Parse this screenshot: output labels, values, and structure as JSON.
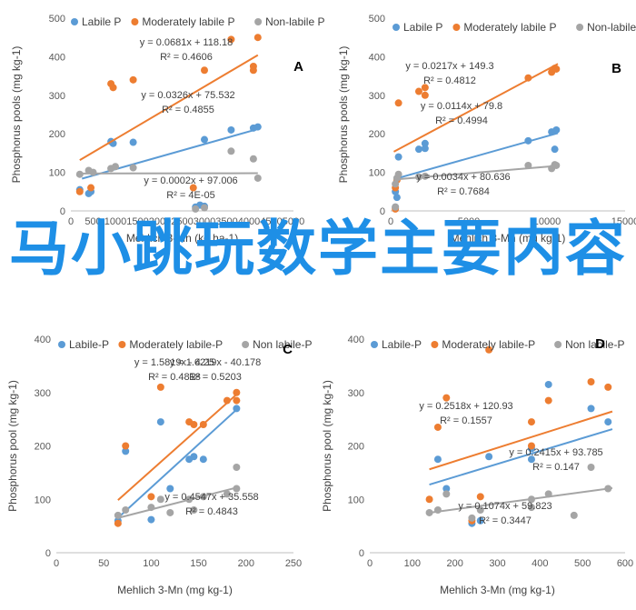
{
  "colors": {
    "labile": "#5b9bd5",
    "moderate": "#ed7d31",
    "nonlabile": "#a5a5a5"
  },
  "watermark": "马小跳玩数学主要内容",
  "chart_data": [
    {
      "type": "scatter",
      "label": "A",
      "xlabel": "Mehlich 3-Mn (kg ha-1)",
      "ylabel": "Phosphorus pools (mg kg-1)",
      "xlim": [
        0,
        5000
      ],
      "ylim": [
        0,
        500
      ],
      "xticks": [
        0,
        500,
        1000,
        1500,
        2000,
        2500,
        3000,
        3500,
        4000,
        4500,
        5000
      ],
      "yticks": [
        0,
        100,
        200,
        300,
        400,
        500
      ],
      "legend": [
        "Labile P",
        "Moderately labile P",
        "Non-labile P"
      ],
      "series": [
        {
          "name": "Labile P",
          "points": [
            [
              200,
              55
            ],
            [
              400,
              45
            ],
            [
              450,
              50
            ],
            [
              900,
              180
            ],
            [
              950,
              175
            ],
            [
              1400,
              178
            ],
            [
              3000,
              185
            ],
            [
              3600,
              210
            ],
            [
              4100,
              215
            ],
            [
              4200,
              218
            ],
            [
              2800,
              10
            ],
            [
              2900,
              15
            ],
            [
              3000,
              12
            ]
          ],
          "trend": [
            250,
            4200
          ],
          "eq": "y = 0.0326x + 75.532",
          "r2": "R² = 0.4855"
        },
        {
          "name": "Moderately labile P",
          "points": [
            [
              200,
              50
            ],
            [
              450,
              60
            ],
            [
              900,
              330
            ],
            [
              950,
              320
            ],
            [
              1400,
              340
            ],
            [
              3000,
              365
            ],
            [
              3600,
              445
            ],
            [
              4100,
              375
            ],
            [
              4200,
              450
            ],
            [
              4100,
              365
            ],
            [
              2750,
              60
            ]
          ],
          "trend": [
            200,
            4200
          ],
          "eq": "y = 0.0681x + 118.18",
          "r2": "R² = 0.4606"
        },
        {
          "name": "Non-labile P",
          "points": [
            [
              200,
              95
            ],
            [
              400,
              105
            ],
            [
              500,
              100
            ],
            [
              900,
              110
            ],
            [
              1000,
              115
            ],
            [
              1400,
              112
            ],
            [
              2800,
              5
            ],
            [
              3000,
              8
            ],
            [
              3600,
              155
            ],
            [
              4100,
              135
            ],
            [
              4200,
              85
            ]
          ],
          "trend": [
            200,
            4200
          ],
          "eq": "y = 0.0002x + 97.006",
          "r2": "R² = 4E-05"
        }
      ]
    },
    {
      "type": "scatter",
      "label": "B",
      "xlabel": "Mehlich 3-Mn (mg kg-1)",
      "ylabel": "Phosphorus pools (mg kg-1)",
      "xlim": [
        0,
        15000
      ],
      "ylim": [
        0,
        500
      ],
      "xticks": [
        0,
        5000,
        10000,
        15000
      ],
      "yticks": [
        0,
        100,
        200,
        300,
        400,
        500
      ],
      "legend": [
        "Labile P",
        "Moderately labile P",
        "Non-labile P"
      ],
      "series": [
        {
          "name": "Labile P",
          "points": [
            [
              300,
              10
            ],
            [
              400,
              35
            ],
            [
              500,
              140
            ],
            [
              1800,
              160
            ],
            [
              2200,
              162
            ],
            [
              2200,
              175
            ],
            [
              8800,
              182
            ],
            [
              10300,
              205
            ],
            [
              10500,
              160
            ],
            [
              10600,
              210
            ],
            [
              300,
              50
            ]
          ],
          "trend": [
            200,
            10700
          ],
          "eq": "y = 0.0114x + 79.8",
          "r2": "R² = 0.4994"
        },
        {
          "name": "Moderately labile P",
          "points": [
            [
              300,
              60
            ],
            [
              400,
              80
            ],
            [
              500,
              280
            ],
            [
              1800,
              310
            ],
            [
              2200,
              300
            ],
            [
              2200,
              320
            ],
            [
              8800,
              345
            ],
            [
              10300,
              360
            ],
            [
              10500,
              370
            ],
            [
              10600,
              368
            ],
            [
              300,
              5
            ]
          ],
          "trend": [
            200,
            10700
          ],
          "eq": "y = 0.0217x + 149.3",
          "r2": "R² = 0.4812"
        },
        {
          "name": "Non-labile P",
          "points": [
            [
              300,
              70
            ],
            [
              400,
              85
            ],
            [
              500,
              95
            ],
            [
              1800,
              88
            ],
            [
              2200,
              90
            ],
            [
              8800,
              118
            ],
            [
              10300,
              110
            ],
            [
              10500,
              120
            ],
            [
              10600,
              118
            ],
            [
              300,
              10
            ]
          ],
          "trend": [
            200,
            10700
          ],
          "eq": "y = 0.0034x + 80.636",
          "r2": "R² = 0.7684"
        }
      ]
    },
    {
      "type": "scatter",
      "label": "C",
      "xlabel": "Mehlich 3-Mn (mg kg-1)",
      "ylabel": "Phosphorus pool (mg kg-1)",
      "xlim": [
        0,
        250
      ],
      "ylim": [
        0,
        400
      ],
      "xticks": [
        0,
        50,
        100,
        150,
        200,
        250
      ],
      "yticks": [
        0,
        100,
        200,
        300,
        400
      ],
      "legend": [
        "Labile-P",
        "Moderately labile-P",
        "Non labile-P"
      ],
      "series": [
        {
          "name": "Labile-P",
          "points": [
            [
              65,
              60
            ],
            [
              73,
              190
            ],
            [
              100,
              62
            ],
            [
              110,
              245
            ],
            [
              120,
              120
            ],
            [
              140,
              175
            ],
            [
              145,
              180
            ],
            [
              155,
              175
            ],
            [
              190,
              270
            ]
          ],
          "trend": [
            65,
            190
          ],
          "eq": "y = 1.6219x - 40.178",
          "r2": "R² = 0.5203"
        },
        {
          "name": "Moderately labile-P",
          "points": [
            [
              65,
              55
            ],
            [
              73,
              200
            ],
            [
              100,
              105
            ],
            [
              110,
              310
            ],
            [
              140,
              245
            ],
            [
              145,
              240
            ],
            [
              155,
              240
            ],
            [
              180,
              285
            ],
            [
              190,
              300
            ],
            [
              190,
              285
            ]
          ],
          "trend": [
            65,
            190
          ],
          "eq": "y = 1.5819x - 4.25",
          "r2": "R² = 0.4818"
        },
        {
          "name": "Non labile-P",
          "points": [
            [
              65,
              70
            ],
            [
              73,
              80
            ],
            [
              100,
              85
            ],
            [
              110,
              100
            ],
            [
              120,
              75
            ],
            [
              140,
              100
            ],
            [
              145,
              80
            ],
            [
              155,
              105
            ],
            [
              180,
              110
            ],
            [
              190,
              160
            ],
            [
              190,
              120
            ]
          ],
          "trend": [
            65,
            190
          ],
          "eq": "y = 0.4547x + 35.558",
          "r2": "R² = 0.4843"
        }
      ]
    },
    {
      "type": "scatter",
      "label": "D",
      "xlabel": "Mehlich 3-Mn (mg kg-1)",
      "ylabel": "Phosphorus pool (mg kg-1)",
      "xlim": [
        0,
        600
      ],
      "ylim": [
        0,
        400
      ],
      "xticks": [
        0,
        100,
        200,
        300,
        400,
        500,
        600
      ],
      "yticks": [
        0,
        100,
        200,
        300,
        400
      ],
      "legend": [
        "Labile-P",
        "Moderately labile-P",
        "Non labile-P"
      ],
      "series": [
        {
          "name": "Labile-P",
          "points": [
            [
              160,
              175
            ],
            [
              180,
              120
            ],
            [
              240,
              55
            ],
            [
              260,
              60
            ],
            [
              280,
              180
            ],
            [
              380,
              175
            ],
            [
              380,
              195
            ],
            [
              420,
              315
            ],
            [
              520,
              270
            ],
            [
              560,
              245
            ]
          ],
          "trend": [
            140,
            570
          ],
          "eq": "y = 0.2415x + 93.785",
          "r2": "R² = 0.147"
        },
        {
          "name": "Moderately labile-P",
          "points": [
            [
              140,
              100
            ],
            [
              160,
              235
            ],
            [
              180,
              290
            ],
            [
              240,
              60
            ],
            [
              260,
              105
            ],
            [
              380,
              245
            ],
            [
              380,
              200
            ],
            [
              420,
              285
            ],
            [
              520,
              320
            ],
            [
              560,
              310
            ],
            [
              280,
              380
            ]
          ],
          "trend": [
            140,
            570
          ],
          "eq": "y = 0.2518x + 120.93",
          "r2": "R² = 0.1557"
        },
        {
          "name": "Non labile-P",
          "points": [
            [
              140,
              75
            ],
            [
              160,
              80
            ],
            [
              180,
              110
            ],
            [
              240,
              65
            ],
            [
              260,
              80
            ],
            [
              380,
              85
            ],
            [
              380,
              100
            ],
            [
              420,
              110
            ],
            [
              480,
              70
            ],
            [
              520,
              160
            ],
            [
              560,
              120
            ]
          ],
          "trend": [
            140,
            570
          ],
          "eq": "y = 0.1074x + 59.823",
          "r2": "R² = 0.3447"
        }
      ]
    }
  ]
}
